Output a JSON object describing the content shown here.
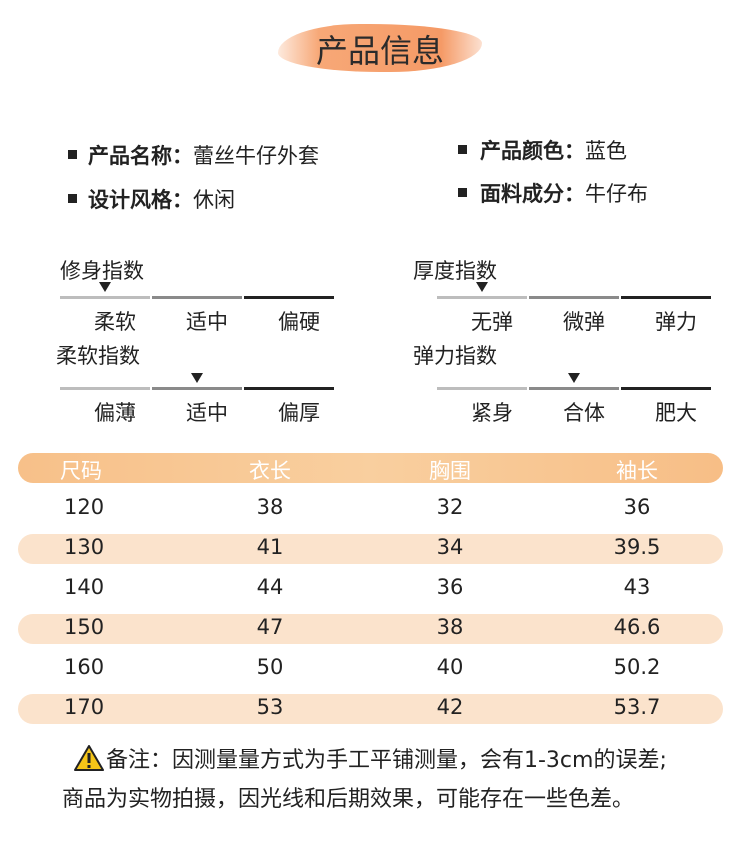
{
  "header": {
    "title": "产品信息"
  },
  "info": [
    {
      "label": "产品名称：",
      "value": "蕾丝牛仔外套"
    },
    {
      "label": "设计风格：",
      "value": "休闲"
    },
    {
      "label": "产品颜色：",
      "value": "蓝色"
    },
    {
      "label": "面料成分：",
      "value": "牛仔布"
    }
  ],
  "scales": [
    {
      "name": "修身指数",
      "options": [
        "柔软",
        "适中",
        "偏硬"
      ],
      "selected": 0
    },
    {
      "name": "柔软指数",
      "options": [
        "偏薄",
        "适中",
        "偏厚"
      ],
      "selected": 1
    },
    {
      "name": "厚度指数",
      "options": [
        "无弹",
        "微弹",
        "弹力"
      ],
      "selected": 0
    },
    {
      "name": "弹力指数",
      "options": [
        "紧身",
        "合体",
        "肥大"
      ],
      "selected": 1
    }
  ],
  "table": {
    "header": [
      "尺码",
      "衣长",
      "胸围",
      "袖长"
    ],
    "rows": [
      [
        120,
        38,
        32,
        36
      ],
      [
        130,
        41,
        34,
        39.5
      ],
      [
        140,
        44,
        36,
        43
      ],
      [
        150,
        47,
        38,
        46.6
      ],
      [
        160,
        50,
        40,
        50.2
      ],
      [
        170,
        53,
        42,
        53.7
      ]
    ]
  },
  "notes": [
    "备注：因测量量方式为手工平铺测量，会有1-3cm的误差;",
    "商品为实物拍摄，因光线和后期效果，可能存在一些色差。"
  ]
}
